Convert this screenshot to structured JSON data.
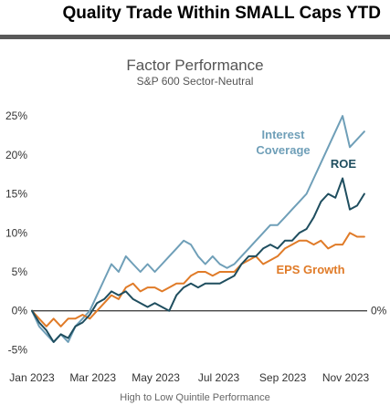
{
  "slide": {
    "title": "Quality Trade Within SMALL Caps YTD",
    "rule_color": "#595959"
  },
  "colors": {
    "interest_coverage": "#6f9fb8",
    "roe": "#1f4e5f",
    "eps_growth": "#e07b28",
    "zero_line": "#444444"
  },
  "chart_data": {
    "type": "line",
    "title": "Factor Performance",
    "subtitle": "S&P 600 Sector-Neutral",
    "caption": "High to Low Quintile Performance",
    "x_ticks": [
      {
        "date": "2023-01-01",
        "label": "Jan 2023"
      },
      {
        "date": "2023-03-01",
        "label": "Mar 2023"
      },
      {
        "date": "2023-05-01",
        "label": "May 2023"
      },
      {
        "date": "2023-07-01",
        "label": "Jul 2023"
      },
      {
        "date": "2023-09-01",
        "label": "Sep 2023"
      },
      {
        "date": "2023-11-01",
        "label": "Nov 2023"
      }
    ],
    "y_ticks": [
      -5,
      0,
      5,
      10,
      15,
      20,
      25
    ],
    "y_tick_labels": [
      "-5%",
      "0%",
      "5%",
      "10%",
      "15%",
      "20%",
      "25%"
    ],
    "right_zero_label": "0%",
    "ylim": [
      -6,
      27
    ],
    "xlim": [
      "2023-01-01",
      "2023-11-20"
    ],
    "series": [
      {
        "name": "Interest Coverage",
        "color": "#6f9fb8",
        "points": [
          [
            "2023-01-01",
            0
          ],
          [
            "2023-01-08",
            -2
          ],
          [
            "2023-01-15",
            -3
          ],
          [
            "2023-01-22",
            -4
          ],
          [
            "2023-01-29",
            -3
          ],
          [
            "2023-02-05",
            -4
          ],
          [
            "2023-02-12",
            -2
          ],
          [
            "2023-02-19",
            -1
          ],
          [
            "2023-02-26",
            0
          ],
          [
            "2023-03-05",
            2
          ],
          [
            "2023-03-12",
            4
          ],
          [
            "2023-03-19",
            6
          ],
          [
            "2023-03-26",
            5
          ],
          [
            "2023-04-02",
            7
          ],
          [
            "2023-04-09",
            6
          ],
          [
            "2023-04-16",
            5
          ],
          [
            "2023-04-23",
            6
          ],
          [
            "2023-04-30",
            5
          ],
          [
            "2023-05-07",
            6
          ],
          [
            "2023-05-14",
            7
          ],
          [
            "2023-05-21",
            8
          ],
          [
            "2023-05-28",
            9
          ],
          [
            "2023-06-04",
            8.5
          ],
          [
            "2023-06-11",
            7
          ],
          [
            "2023-06-18",
            6
          ],
          [
            "2023-06-25",
            7
          ],
          [
            "2023-07-02",
            6
          ],
          [
            "2023-07-09",
            5.5
          ],
          [
            "2023-07-16",
            6
          ],
          [
            "2023-07-23",
            7
          ],
          [
            "2023-07-30",
            8
          ],
          [
            "2023-08-06",
            9
          ],
          [
            "2023-08-13",
            10
          ],
          [
            "2023-08-20",
            11
          ],
          [
            "2023-08-27",
            11
          ],
          [
            "2023-09-03",
            12
          ],
          [
            "2023-09-10",
            13
          ],
          [
            "2023-09-17",
            14
          ],
          [
            "2023-09-24",
            15
          ],
          [
            "2023-10-01",
            17
          ],
          [
            "2023-10-08",
            19
          ],
          [
            "2023-10-15",
            21
          ],
          [
            "2023-10-22",
            23
          ],
          [
            "2023-10-29",
            25
          ],
          [
            "2023-11-05",
            21
          ],
          [
            "2023-11-12",
            22
          ],
          [
            "2023-11-19",
            23
          ]
        ]
      },
      {
        "name": "ROE",
        "color": "#1f4e5f",
        "points": [
          [
            "2023-01-01",
            0
          ],
          [
            "2023-01-08",
            -1.5
          ],
          [
            "2023-01-15",
            -2.5
          ],
          [
            "2023-01-22",
            -4
          ],
          [
            "2023-01-29",
            -3
          ],
          [
            "2023-02-05",
            -3.5
          ],
          [
            "2023-02-12",
            -2
          ],
          [
            "2023-02-19",
            -1.5
          ],
          [
            "2023-02-26",
            -0.5
          ],
          [
            "2023-03-05",
            1
          ],
          [
            "2023-03-12",
            1.5
          ],
          [
            "2023-03-19",
            2.5
          ],
          [
            "2023-03-26",
            2
          ],
          [
            "2023-04-02",
            2.5
          ],
          [
            "2023-04-09",
            1.5
          ],
          [
            "2023-04-16",
            1
          ],
          [
            "2023-04-23",
            0.5
          ],
          [
            "2023-04-30",
            1
          ],
          [
            "2023-05-07",
            0.5
          ],
          [
            "2023-05-14",
            0
          ],
          [
            "2023-05-21",
            2
          ],
          [
            "2023-05-28",
            3
          ],
          [
            "2023-06-04",
            3.5
          ],
          [
            "2023-06-11",
            3
          ],
          [
            "2023-06-18",
            3.5
          ],
          [
            "2023-06-25",
            3.5
          ],
          [
            "2023-07-02",
            3.5
          ],
          [
            "2023-07-09",
            4
          ],
          [
            "2023-07-16",
            4.5
          ],
          [
            "2023-07-23",
            6
          ],
          [
            "2023-07-30",
            7
          ],
          [
            "2023-08-06",
            7
          ],
          [
            "2023-08-13",
            8
          ],
          [
            "2023-08-20",
            8.5
          ],
          [
            "2023-08-27",
            8
          ],
          [
            "2023-09-03",
            9
          ],
          [
            "2023-09-10",
            9
          ],
          [
            "2023-09-17",
            10
          ],
          [
            "2023-09-24",
            10.5
          ],
          [
            "2023-10-01",
            12
          ],
          [
            "2023-10-08",
            14
          ],
          [
            "2023-10-15",
            15
          ],
          [
            "2023-10-22",
            14.5
          ],
          [
            "2023-10-29",
            17
          ],
          [
            "2023-11-05",
            13
          ],
          [
            "2023-11-12",
            13.5
          ],
          [
            "2023-11-19",
            15
          ]
        ]
      },
      {
        "name": "EPS Growth",
        "color": "#e07b28",
        "points": [
          [
            "2023-01-01",
            0
          ],
          [
            "2023-01-08",
            -1
          ],
          [
            "2023-01-15",
            -2
          ],
          [
            "2023-01-22",
            -1
          ],
          [
            "2023-01-29",
            -2
          ],
          [
            "2023-02-05",
            -1
          ],
          [
            "2023-02-12",
            -1
          ],
          [
            "2023-02-19",
            -0.5
          ],
          [
            "2023-02-26",
            -1
          ],
          [
            "2023-03-05",
            0
          ],
          [
            "2023-03-12",
            1
          ],
          [
            "2023-03-19",
            2
          ],
          [
            "2023-03-26",
            1.5
          ],
          [
            "2023-04-02",
            3
          ],
          [
            "2023-04-09",
            3.5
          ],
          [
            "2023-04-16",
            2.5
          ],
          [
            "2023-04-23",
            3
          ],
          [
            "2023-04-30",
            3
          ],
          [
            "2023-05-07",
            2.5
          ],
          [
            "2023-05-14",
            3
          ],
          [
            "2023-05-21",
            3.5
          ],
          [
            "2023-05-28",
            3.5
          ],
          [
            "2023-06-04",
            4.5
          ],
          [
            "2023-06-11",
            5
          ],
          [
            "2023-06-18",
            5
          ],
          [
            "2023-06-25",
            4.5
          ],
          [
            "2023-07-02",
            5
          ],
          [
            "2023-07-09",
            5
          ],
          [
            "2023-07-16",
            5
          ],
          [
            "2023-07-23",
            6
          ],
          [
            "2023-07-30",
            6.5
          ],
          [
            "2023-08-06",
            7
          ],
          [
            "2023-08-13",
            6
          ],
          [
            "2023-08-20",
            6.5
          ],
          [
            "2023-08-27",
            7
          ],
          [
            "2023-09-03",
            8
          ],
          [
            "2023-09-10",
            8.5
          ],
          [
            "2023-09-17",
            9
          ],
          [
            "2023-09-24",
            9
          ],
          [
            "2023-10-01",
            8.5
          ],
          [
            "2023-10-08",
            9
          ],
          [
            "2023-10-15",
            8
          ],
          [
            "2023-10-22",
            8.5
          ],
          [
            "2023-10-29",
            8.5
          ],
          [
            "2023-11-05",
            10
          ],
          [
            "2023-11-12",
            9.5
          ],
          [
            "2023-11-19",
            9.5
          ]
        ]
      }
    ],
    "annotations": [
      {
        "series": "Interest Coverage",
        "lines": [
          "Interest",
          "Coverage"
        ]
      },
      {
        "series": "ROE",
        "lines": [
          "ROE"
        ]
      },
      {
        "series": "EPS Growth",
        "lines": [
          "EPS Growth"
        ]
      }
    ]
  }
}
